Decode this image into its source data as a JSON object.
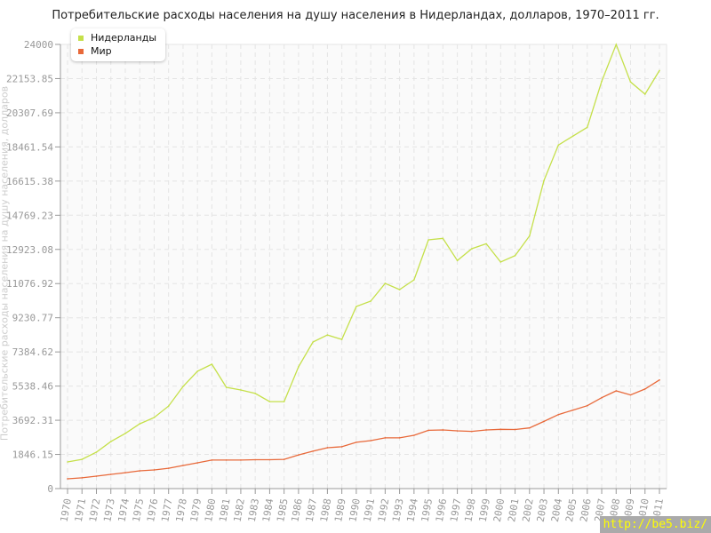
{
  "chart_data": {
    "type": "line",
    "title": "Потребительские расходы населения на душу населения в Нидерландах, долларов, 1970–2011 гг.",
    "ylabel": "Потребительские расходы населения на душу населения, долларов",
    "xlabel": "",
    "ylim": [
      0,
      24000
    ],
    "yticks": [
      "0",
      "1846.15",
      "3692.31",
      "5538.46",
      "7384.62",
      "9230.77",
      "11076.92",
      "12923.08",
      "14769.23",
      "16615.38",
      "18461.54",
      "20307.69",
      "22153.85",
      "24000"
    ],
    "grid": true,
    "legend": "top-left",
    "x": [
      1970,
      1971,
      1972,
      1973,
      1974,
      1975,
      1976,
      1977,
      1978,
      1979,
      1980,
      1981,
      1982,
      1983,
      1984,
      1985,
      1986,
      1987,
      1988,
      1989,
      1990,
      1991,
      1992,
      1993,
      1994,
      1995,
      1996,
      1997,
      1998,
      1999,
      2000,
      2001,
      2002,
      2003,
      2004,
      2005,
      2006,
      2007,
      2008,
      2009,
      2010,
      2011
    ],
    "series": [
      {
        "name": "Нидерланды",
        "color": "#c5e04a",
        "values": [
          1440,
          1580,
          1970,
          2540,
          2980,
          3500,
          3840,
          4460,
          5520,
          6340,
          6720,
          5470,
          5330,
          5140,
          4700,
          4700,
          6580,
          7920,
          8300,
          8060,
          9840,
          10130,
          11090,
          10750,
          11280,
          13440,
          13520,
          12320,
          12960,
          13230,
          12240,
          12590,
          13650,
          16640,
          18560,
          19040,
          19520,
          22000,
          24000,
          21970,
          21310,
          22590
        ]
      },
      {
        "name": "Мир",
        "color": "#e8693a",
        "values": [
          530,
          580,
          670,
          770,
          860,
          960,
          1010,
          1100,
          1250,
          1390,
          1540,
          1540,
          1540,
          1560,
          1560,
          1580,
          1820,
          2020,
          2210,
          2260,
          2500,
          2590,
          2740,
          2740,
          2880,
          3150,
          3170,
          3120,
          3090,
          3170,
          3200,
          3190,
          3280,
          3630,
          4000,
          4240,
          4480,
          4910,
          5280,
          5060,
          5380,
          5870
        ]
      }
    ]
  },
  "watermark": "http://be5.biz/"
}
